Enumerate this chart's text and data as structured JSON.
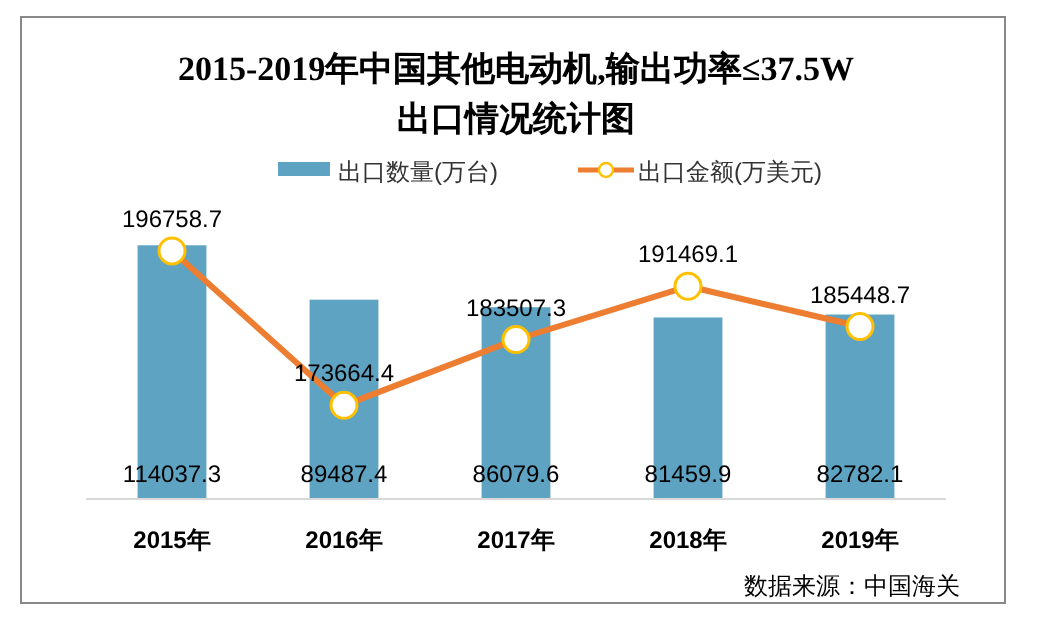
{
  "chart_data": {
    "type": "bar",
    "title": "2015-2019年中国其他电动机,输出功率≤37.5W\n出口情况统计图",
    "categories": [
      "2015年",
      "2016年",
      "2017年",
      "2018年",
      "2019年"
    ],
    "series": [
      {
        "name": "出口数量(万台)",
        "color": "#5fa3c3",
        "values": [
          114037.3,
          89487.4,
          86079.6,
          81459.9,
          82782.1
        ]
      },
      {
        "name": "出口金额(万美元)",
        "type": "line",
        "axis": "y2",
        "color": "#ed7d31",
        "marker": "circle",
        "values": [
          196758.7,
          173664.4,
          183507.3,
          191469.1,
          185448.7
        ]
      }
    ],
    "data_labels": true,
    "legend": "top",
    "annotations": [
      "数据来源：中国海关"
    ]
  }
}
